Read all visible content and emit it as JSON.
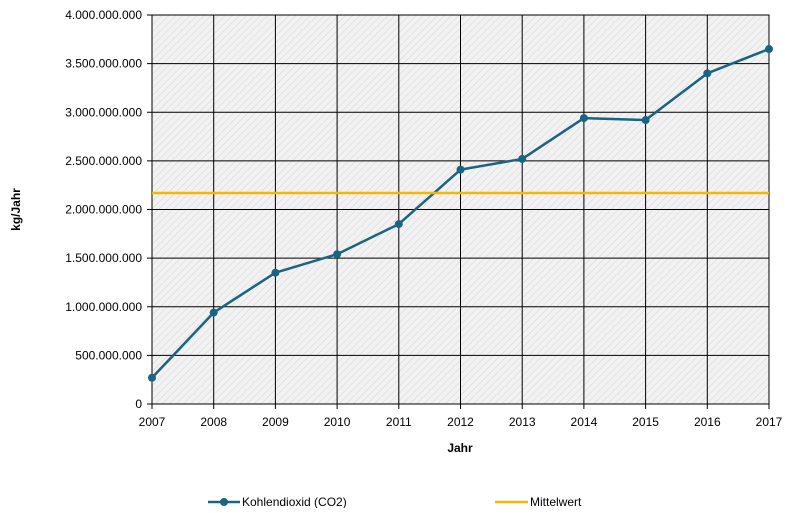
{
  "chart_data": {
    "type": "line",
    "xlabel": "Jahr",
    "ylabel": "kg/Jahr",
    "x": [
      2007,
      2008,
      2009,
      2010,
      2011,
      2012,
      2013,
      2014,
      2015,
      2016,
      2017
    ],
    "x_tick_labels": [
      "2007",
      "2008",
      "2009",
      "2010",
      "2011",
      "2012",
      "2013",
      "2014",
      "2015",
      "2016",
      "2017"
    ],
    "ylim": [
      0,
      4000000000
    ],
    "y_ticks": [
      0,
      500000000,
      1000000000,
      1500000000,
      2000000000,
      2500000000,
      3000000000,
      3500000000,
      4000000000
    ],
    "y_tick_labels": [
      "0",
      "500.000.000",
      "1.000.000.000",
      "1.500.000.000",
      "2.000.000.000",
      "2.500.000.000",
      "3.000.000.000",
      "3.500.000.000",
      "4.000.000.000"
    ],
    "grid": true,
    "legend_position": "bottom",
    "series": [
      {
        "name": "Kohlendioxid (CO2)",
        "color": "#1b6481",
        "marker": "circle",
        "values": [
          270000000,
          940000000,
          1350000000,
          1540000000,
          1850000000,
          2410000000,
          2520000000,
          2940000000,
          2920000000,
          3400000000,
          3650000000
        ]
      },
      {
        "name": "Mittelwert",
        "color": "#f5b800",
        "marker": "none",
        "values": [
          2170000000,
          2170000000,
          2170000000,
          2170000000,
          2170000000,
          2170000000,
          2170000000,
          2170000000,
          2170000000,
          2170000000,
          2170000000
        ]
      }
    ]
  }
}
